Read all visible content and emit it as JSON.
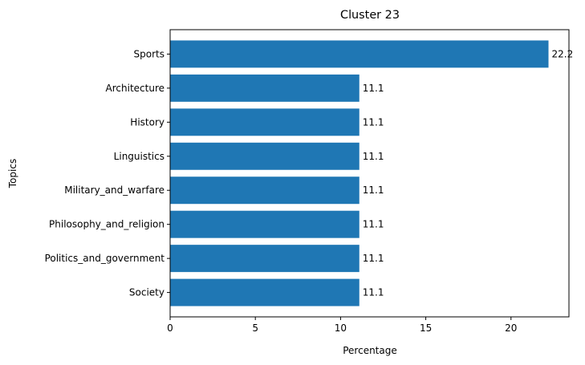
{
  "chart_data": {
    "type": "bar",
    "orientation": "horizontal",
    "title": "Cluster 23",
    "xlabel": "Percentage",
    "ylabel": "Topics",
    "categories": [
      "Sports",
      "Architecture",
      "History",
      "Linguistics",
      "Military_and_warfare",
      "Philosophy_and_religion",
      "Politics_and_government",
      "Society"
    ],
    "values": [
      22.2,
      11.1,
      11.1,
      11.1,
      11.1,
      11.1,
      11.1,
      11.1
    ],
    "data_labels": [
      "22.2",
      "11.1",
      "11.1",
      "11.1",
      "11.1",
      "11.1",
      "11.1",
      "11.1"
    ],
    "xticks": [
      0,
      5,
      10,
      15,
      20
    ],
    "xlim": [
      0,
      23.4
    ],
    "grid": false,
    "bar_color": "#1f77b4"
  }
}
